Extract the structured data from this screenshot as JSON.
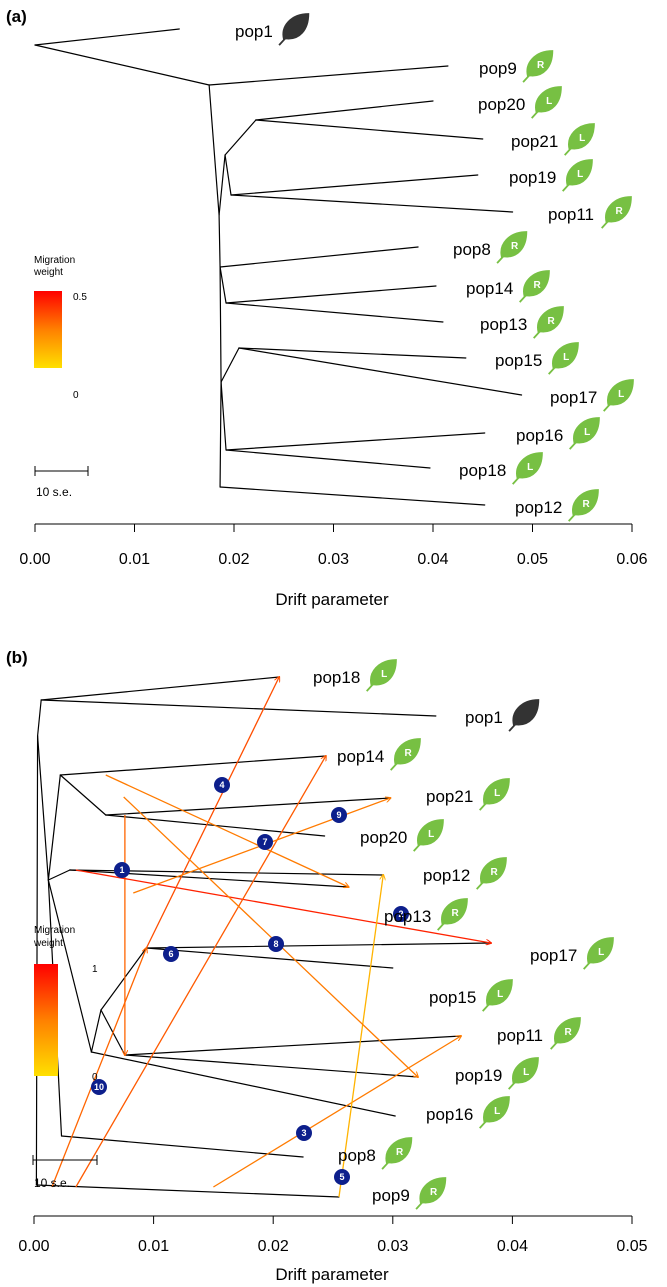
{
  "chart_data": [
    {
      "type": "tree",
      "panel_label": "(a)",
      "xlabel": "Drift parameter",
      "x_ticks": [
        "0.00",
        "0.01",
        "0.02",
        "0.03",
        "0.04",
        "0.05",
        "0.06"
      ],
      "xlim": [
        0,
        0.06
      ],
      "legend": {
        "title": "Migration\nweight",
        "max": "0.5",
        "min": "0"
      },
      "scale_bar": "10 s.e.",
      "tips": [
        {
          "name": "pop1",
          "leaf": "dark",
          "letter": ""
        },
        {
          "name": "pop9",
          "leaf": "green",
          "letter": "R"
        },
        {
          "name": "pop20",
          "leaf": "green",
          "letter": "L"
        },
        {
          "name": "pop21",
          "leaf": "green",
          "letter": "L"
        },
        {
          "name": "pop19",
          "leaf": "green",
          "letter": "L"
        },
        {
          "name": "pop11",
          "leaf": "green",
          "letter": "R"
        },
        {
          "name": "pop8",
          "leaf": "green",
          "letter": "R"
        },
        {
          "name": "pop14",
          "leaf": "green",
          "letter": "R"
        },
        {
          "name": "pop13",
          "leaf": "green",
          "letter": "R"
        },
        {
          "name": "pop15",
          "leaf": "green",
          "letter": "L"
        },
        {
          "name": "pop17",
          "leaf": "green",
          "letter": "L"
        },
        {
          "name": "pop16",
          "leaf": "green",
          "letter": "L"
        },
        {
          "name": "pop18",
          "leaf": "green",
          "letter": "L"
        },
        {
          "name": "pop12",
          "leaf": "green",
          "letter": "R"
        }
      ],
      "branches": [
        [
          0,
          0.0175
        ],
        [
          0.0175,
          0.0175
        ],
        [
          0,
          0.0175
        ],
        [
          0.0175,
          0.0415
        ],
        [
          0.0175,
          0.0185
        ],
        [
          0.0182,
          0.0191
        ],
        [
          0.0191,
          0.0222
        ],
        [
          0.0222,
          0.04
        ],
        [
          0.0222,
          0.045
        ],
        [
          0.0191,
          0.0197
        ],
        [
          0.0197,
          0.0445
        ],
        [
          0.0197,
          0.048
        ],
        [
          0.0185,
          0.0385
        ],
        [
          0.0186,
          0.0192
        ],
        [
          0.0192,
          0.0403
        ],
        [
          0.0192,
          0.041
        ],
        [
          0.0187,
          0.0192
        ],
        [
          0.0192,
          0.0205
        ],
        [
          0.0205,
          0.0433
        ],
        [
          0.0205,
          0.0489
        ],
        [
          0.0192,
          0.0452
        ],
        [
          0.0192,
          0.0397
        ],
        [
          0.0186,
          0.0452
        ]
      ],
      "migration_edges": []
    },
    {
      "type": "tree",
      "panel_label": "(b)",
      "xlabel": "Drift parameter",
      "x_ticks": [
        "0.00",
        "0.01",
        "0.02",
        "0.03",
        "0.04",
        "0.05"
      ],
      "xlim": [
        0,
        0.05
      ],
      "legend": {
        "title": "Migration\nweight",
        "max": "1",
        "min": "0"
      },
      "scale_bar": "10 s.e.",
      "tips": [
        {
          "name": "pop18",
          "leaf": "green",
          "letter": "L"
        },
        {
          "name": "pop1",
          "leaf": "dark",
          "letter": ""
        },
        {
          "name": "pop14",
          "leaf": "green",
          "letter": "R"
        },
        {
          "name": "pop21",
          "leaf": "green",
          "letter": "L"
        },
        {
          "name": "pop20",
          "leaf": "green",
          "letter": "L"
        },
        {
          "name": "pop12",
          "leaf": "green",
          "letter": "R"
        },
        {
          "name": "pop13",
          "leaf": "green",
          "letter": "R"
        },
        {
          "name": "pop17",
          "leaf": "green",
          "letter": "L"
        },
        {
          "name": "pop15",
          "leaf": "green",
          "letter": "L"
        },
        {
          "name": "pop11",
          "leaf": "green",
          "letter": "R"
        },
        {
          "name": "pop19",
          "leaf": "green",
          "letter": "L"
        },
        {
          "name": "pop16",
          "leaf": "green",
          "letter": "L"
        },
        {
          "name": "pop8",
          "leaf": "green",
          "letter": "R"
        },
        {
          "name": "pop9",
          "leaf": "green",
          "letter": "R"
        }
      ],
      "migration_edges": [
        {
          "label": "1",
          "weight": 0.55
        },
        {
          "label": "2",
          "weight": 0.85
        },
        {
          "label": "3",
          "weight": 0.45
        },
        {
          "label": "4",
          "weight": 0.65
        },
        {
          "label": "5",
          "weight": 0.2
        },
        {
          "label": "6",
          "weight": 0.6
        },
        {
          "label": "7",
          "weight": 0.45
        },
        {
          "label": "8",
          "weight": 0.45
        },
        {
          "label": "9",
          "weight": 0.45
        },
        {
          "label": "10",
          "weight": 0.55
        }
      ]
    }
  ]
}
